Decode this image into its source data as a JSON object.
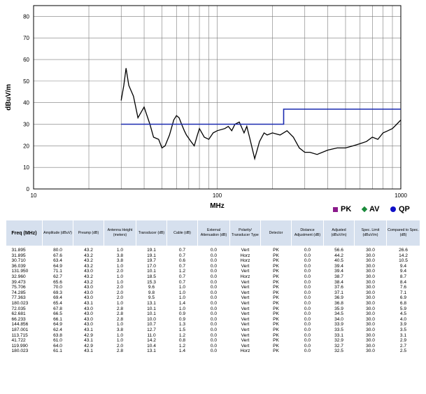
{
  "chart_data": {
    "type": "line",
    "xlabel": "MHz",
    "ylabel": "dBuV/m",
    "xscale": "log",
    "xlim": [
      10,
      1000
    ],
    "ylim": [
      0,
      85
    ],
    "x_ticks": [
      10,
      100,
      1000
    ],
    "x_tick_labels": [
      "10",
      "100",
      "1000"
    ],
    "y_ticks": [
      0,
      10,
      20,
      30,
      40,
      50,
      60,
      70,
      80
    ],
    "y_tick_labels": [
      "0",
      "10",
      "20",
      "30",
      "40",
      "50",
      "60",
      "70",
      "80"
    ],
    "grid": true,
    "legend_position": "bottom-right",
    "legend": [
      {
        "label": "PK",
        "marker": "square",
        "color": "#8b1a8b"
      },
      {
        "label": "AV",
        "marker": "diamond",
        "color": "#1a8a3a"
      },
      {
        "label": "QP",
        "marker": "circle",
        "color": "#1010c8"
      }
    ],
    "series": [
      {
        "color": "#000000",
        "x": [
          30,
          31,
          31.9,
          33,
          35,
          37,
          40,
          43,
          45,
          48,
          50,
          52,
          55,
          58,
          60,
          62,
          64,
          66.2,
          68,
          72,
          75,
          78,
          80,
          85,
          90,
          95,
          100,
          110,
          115,
          120,
          125,
          131.9,
          140,
          144.9,
          150,
          160,
          170,
          180,
          187,
          200,
          220,
          240,
          260,
          280,
          300,
          320,
          350,
          400,
          450,
          500,
          550,
          600,
          650,
          700,
          750,
          800,
          850,
          900,
          950,
          1000
        ],
        "y": [
          41,
          48,
          56,
          48,
          43,
          33,
          38,
          30,
          24,
          23,
          19,
          20,
          25,
          32,
          34,
          33,
          30,
          27,
          25,
          22,
          20,
          25,
          28,
          24,
          23,
          26,
          27,
          28,
          29,
          27,
          30,
          31,
          26,
          29,
          24,
          14,
          22,
          26,
          25,
          26,
          25,
          27,
          24,
          19,
          17,
          17,
          16,
          18,
          19,
          19,
          20,
          21,
          22,
          24,
          23,
          26,
          27,
          28,
          30,
          32
        ]
      },
      {
        "name": "Spec. Limit",
        "color": "#1b2bb0",
        "x": [
          30,
          230,
          230,
          1000
        ],
        "y": [
          30,
          30,
          37,
          37
        ]
      }
    ]
  },
  "table": {
    "headers": [
      "Freq (MHz)",
      "Amplitude (dBuV)",
      "Preamp (dB)",
      "Antenna Height (meters)",
      "Transducer (dB)",
      "Cable (dB)",
      "External Attenuation (dB)",
      "Polarity/ Transducer Type",
      "Detector",
      "Distance Adjustment (dB)",
      "Adjusted (dBuV/m)",
      "Spec. Limit (dBuV/m)",
      "Compared to Spec. (dB)"
    ],
    "rows": [
      [
        "31.895",
        "80.0",
        "43.2",
        "1.0",
        "19.1",
        "0.7",
        "0.0",
        "Vert",
        "PK",
        "0.0",
        "56.6",
        "30.0",
        "26.6"
      ],
      [
        "31.895",
        "67.6",
        "43.2",
        "3.8",
        "19.1",
        "0.7",
        "0.0",
        "Horz",
        "PK",
        "0.0",
        "44.2",
        "30.0",
        "14.2"
      ],
      [
        "30.710",
        "63.4",
        "43.2",
        "3.8",
        "19.7",
        "0.6",
        "0.0",
        "Horz",
        "PK",
        "0.0",
        "40.5",
        "30.0",
        "10.5"
      ],
      [
        "36.039",
        "64.9",
        "43.2",
        "1.0",
        "17.0",
        "0.7",
        "0.0",
        "Vert",
        "PK",
        "0.0",
        "39.4",
        "30.0",
        "9.4"
      ],
      [
        "131.950",
        "71.1",
        "43.0",
        "2.0",
        "10.1",
        "1.2",
        "0.0",
        "Vert",
        "PK",
        "0.0",
        "39.4",
        "30.0",
        "9.4"
      ],
      [
        "32.960",
        "62.7",
        "43.2",
        "1.0",
        "18.5",
        "0.7",
        "0.0",
        "Horz",
        "PK",
        "0.0",
        "38.7",
        "30.0",
        "8.7"
      ],
      [
        "39.473",
        "65.6",
        "43.2",
        "1.0",
        "15.3",
        "0.7",
        "0.0",
        "Vert",
        "PK",
        "0.0",
        "38.4",
        "30.0",
        "8.4"
      ],
      [
        "75.706",
        "70.0",
        "43.0",
        "2.0",
        "9.6",
        "1.0",
        "0.0",
        "Vert",
        "PK",
        "0.0",
        "37.6",
        "30.0",
        "7.6"
      ],
      [
        "74.285",
        "69.3",
        "43.0",
        "2.0",
        "9.8",
        "1.0",
        "0.0",
        "Vert",
        "PK",
        "0.0",
        "37.1",
        "30.0",
        "7.1"
      ],
      [
        "77.363",
        "69.4",
        "43.0",
        "2.0",
        "9.5",
        "1.0",
        "0.0",
        "Vert",
        "PK",
        "0.0",
        "36.9",
        "30.0",
        "6.9"
      ],
      [
        "180.023",
        "65.4",
        "43.1",
        "1.0",
        "13.1",
        "1.4",
        "0.0",
        "Vert",
        "PK",
        "0.0",
        "36.8",
        "30.0",
        "6.8"
      ],
      [
        "72.035",
        "67.8",
        "43.0",
        "2.8",
        "10.1",
        "1.0",
        "0.0",
        "Vert",
        "PK",
        "0.0",
        "35.9",
        "30.0",
        "5.9"
      ],
      [
        "62.681",
        "66.5",
        "43.0",
        "2.8",
        "10.1",
        "0.9",
        "0.0",
        "Vert",
        "PK",
        "0.0",
        "34.5",
        "30.0",
        "4.5"
      ],
      [
        "66.233",
        "66.1",
        "43.0",
        "2.8",
        "10.0",
        "0.9",
        "0.0",
        "Vert",
        "PK",
        "0.0",
        "34.0",
        "30.0",
        "4.0"
      ],
      [
        "144.856",
        "64.9",
        "43.0",
        "1.0",
        "10.7",
        "1.3",
        "0.0",
        "Vert",
        "PK",
        "0.0",
        "33.9",
        "30.0",
        "3.9"
      ],
      [
        "187.001",
        "62.4",
        "43.1",
        "3.8",
        "12.7",
        "1.5",
        "0.0",
        "Vert",
        "PK",
        "0.0",
        "33.5",
        "30.0",
        "3.5"
      ],
      [
        "113.715",
        "63.8",
        "42.9",
        "1.0",
        "11.0",
        "1.2",
        "0.0",
        "Vert",
        "PK",
        "0.0",
        "33.1",
        "30.0",
        "3.1"
      ],
      [
        "41.722",
        "61.0",
        "43.1",
        "1.0",
        "14.2",
        "0.8",
        "0.0",
        "Vert",
        "PK",
        "0.0",
        "32.9",
        "30.0",
        "2.9"
      ],
      [
        "119.990",
        "64.0",
        "42.9",
        "2.0",
        "10.4",
        "1.2",
        "0.0",
        "Vert",
        "PK",
        "0.0",
        "32.7",
        "30.0",
        "2.7"
      ],
      [
        "180.023",
        "61.1",
        "43.1",
        "2.8",
        "13.1",
        "1.4",
        "0.0",
        "Horz",
        "PK",
        "0.0",
        "32.5",
        "30.0",
        "2.5"
      ]
    ]
  }
}
